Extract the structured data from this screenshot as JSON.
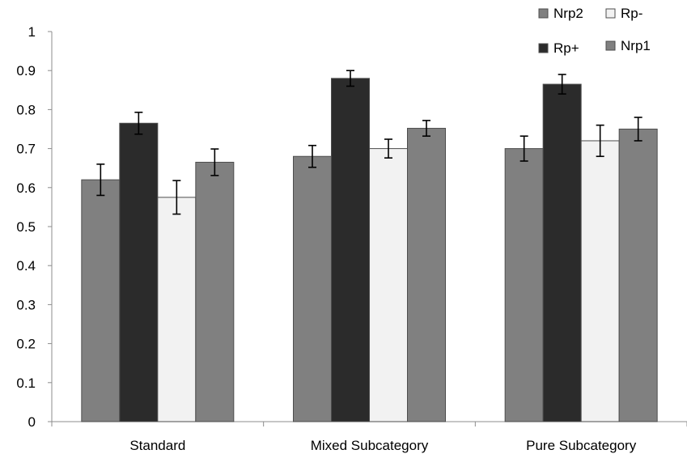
{
  "chart_data": {
    "type": "bar",
    "title": "",
    "xlabel": "",
    "ylabel": "",
    "ylim": [
      0,
      1
    ],
    "yticks": [
      "0",
      "0.1",
      "0.2",
      "0.3",
      "0.4",
      "0.5",
      "0.6",
      "0.7",
      "0.8",
      "0.9",
      "1"
    ],
    "categories": [
      "Standard",
      "Mixed Subcategory",
      "Pure Subcategory"
    ],
    "grid": false,
    "legend_position": "top-right",
    "series": [
      {
        "name": "Nrp2",
        "color": "#808080",
        "values": [
          0.62,
          0.68,
          0.7
        ],
        "errors": [
          0.04,
          0.028,
          0.032
        ]
      },
      {
        "name": "Rp+",
        "color": "#2b2b2b",
        "values": [
          0.765,
          0.88,
          0.865
        ],
        "errors": [
          0.028,
          0.02,
          0.025
        ]
      },
      {
        "name": "Rp-",
        "color": "#f2f2f2",
        "values": [
          0.575,
          0.7,
          0.72
        ],
        "errors": [
          0.043,
          0.024,
          0.04
        ]
      },
      {
        "name": "Nrp1",
        "color": "#808080",
        "values": [
          0.665,
          0.752,
          0.75
        ],
        "errors": [
          0.034,
          0.02,
          0.03
        ]
      }
    ],
    "legend_order": [
      "Nrp2",
      "Rp-",
      "Rp+",
      "Nrp1"
    ]
  }
}
